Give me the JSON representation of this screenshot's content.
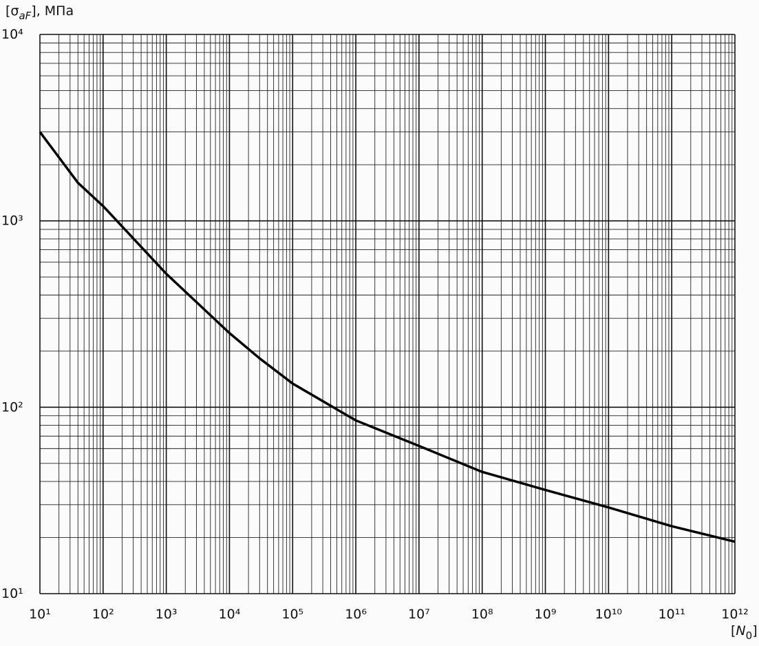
{
  "chart_data": {
    "type": "line",
    "y_label": [
      "[σ",
      "aF",
      "], МПа"
    ],
    "x_label": [
      "[",
      "N",
      "0",
      "]"
    ],
    "log_x": true,
    "log_y": true,
    "grid": true,
    "minor_grid": [
      2,
      3,
      4,
      5,
      6,
      7,
      8,
      9
    ],
    "xlim": [
      10,
      1000000000000
    ],
    "ylim": [
      10,
      10000
    ],
    "xticks": [
      {
        "value": 10,
        "label": "10¹"
      },
      {
        "value": 100,
        "label": "10²"
      },
      {
        "value": 1000,
        "label": "10³"
      },
      {
        "value": 10000,
        "label": "10⁴"
      },
      {
        "value": 100000,
        "label": "10⁵"
      },
      {
        "value": 1000000,
        "label": "10⁶"
      },
      {
        "value": 10000000,
        "label": "10⁷"
      },
      {
        "value": 100000000,
        "label": "10⁸"
      },
      {
        "value": 1000000000,
        "label": "10⁹"
      },
      {
        "value": 10000000000,
        "label": "10¹⁰"
      },
      {
        "value": 100000000000,
        "label": "10¹¹"
      },
      {
        "value": 1000000000000,
        "label": "10¹²"
      }
    ],
    "yticks": [
      {
        "value": 10,
        "label": "10¹"
      },
      {
        "value": 100,
        "label": "10²"
      },
      {
        "value": 1000,
        "label": "10³"
      },
      {
        "value": 10000,
        "label": "10⁴"
      }
    ],
    "series": [
      {
        "color": "#000000",
        "x": [
          10,
          40,
          100,
          1000,
          10000,
          30000,
          100000,
          1000000,
          10000000,
          100000000,
          1000000000,
          10000000000,
          100000000000,
          1000000000000
        ],
        "values": [
          3000,
          1600,
          1200,
          520,
          250,
          183,
          134,
          85,
          62,
          45,
          36,
          29,
          23,
          19
        ]
      }
    ]
  }
}
